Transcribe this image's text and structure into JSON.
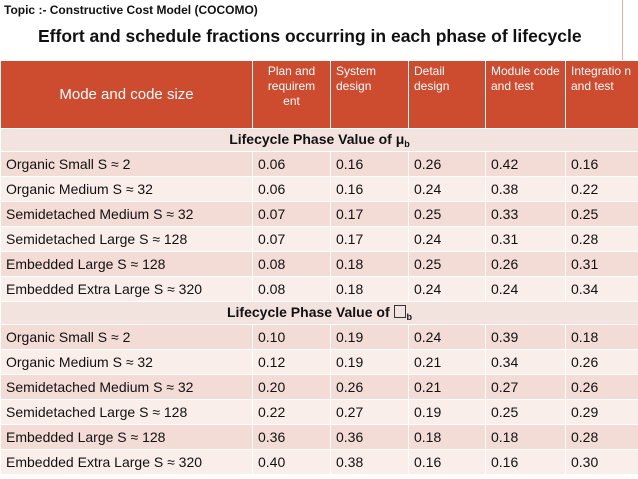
{
  "topic": "Topic :- Constructive Cost Model (COCOMO)",
  "title": "Effort and schedule fractions occurring in each phase of lifecycle",
  "headers": {
    "mode": "Mode and code size",
    "phases": [
      "Plan and requirem ent",
      "System design",
      "Detail design",
      "Module code and test",
      "Integratio n and test"
    ]
  },
  "section1": {
    "label": "Lifecycle Phase Value of μ",
    "subscript": "b"
  },
  "section2": {
    "label": "Lifecycle Phase Value of ",
    "subscript": "b"
  },
  "rows1": [
    {
      "mode": "Organic Small S ≈ 2",
      "v": [
        "0.06",
        "0.16",
        "0.26",
        "0.42",
        "0.16"
      ]
    },
    {
      "mode": "Organic Medium S ≈ 32",
      "v": [
        "0.06",
        "0.16",
        "0.24",
        "0.38",
        "0.22"
      ]
    },
    {
      "mode": "Semidetached Medium S ≈ 32",
      "v": [
        "0.07",
        "0.17",
        "0.25",
        "0.33",
        "0.25"
      ]
    },
    {
      "mode": "Semidetached Large S ≈ 128",
      "v": [
        "0.07",
        "0.17",
        "0.24",
        "0.31",
        "0.28"
      ]
    },
    {
      "mode": "Embedded Large S ≈ 128",
      "v": [
        "0.08",
        "0.18",
        "0.25",
        "0.26",
        "0.31"
      ]
    },
    {
      "mode": "Embedded Extra Large S ≈ 320",
      "v": [
        "0.08",
        "0.18",
        "0.24",
        "0.24",
        "0.34"
      ]
    }
  ],
  "rows2": [
    {
      "mode": "Organic Small S ≈ 2",
      "v": [
        "0.10",
        "0.19",
        "0.24",
        "0.39",
        "0.18"
      ]
    },
    {
      "mode": "Organic Medium S ≈ 32",
      "v": [
        "0.12",
        "0.19",
        "0.21",
        "0.34",
        "0.26"
      ]
    },
    {
      "mode": "Semidetached Medium S ≈ 32",
      "v": [
        "0.20",
        "0.26",
        "0.21",
        "0.27",
        "0.26"
      ]
    },
    {
      "mode": "Semidetached Large S ≈ 128",
      "v": [
        "0.22",
        "0.27",
        "0.19",
        "0.25",
        "0.29"
      ]
    },
    {
      "mode": "Embedded Large S ≈ 128",
      "v": [
        "0.36",
        "0.36",
        "0.18",
        "0.18",
        "0.28"
      ]
    },
    {
      "mode": "Embedded Extra Large S ≈ 320",
      "v": [
        "0.40",
        "0.38",
        "0.16",
        "0.16",
        "0.30"
      ]
    }
  ],
  "colors": {
    "header_bg": "#cd4b2f",
    "row_dark": "#f3dcd6",
    "row_light": "#faeeeb"
  }
}
